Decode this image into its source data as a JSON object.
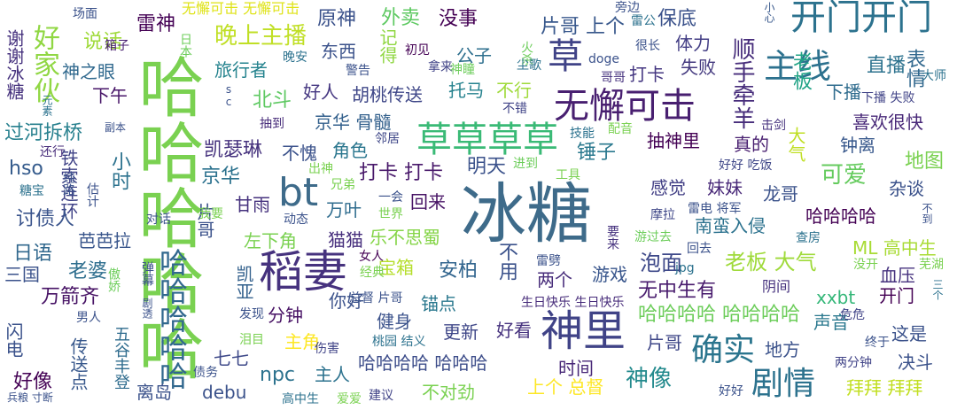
{
  "words": [
    {
      "text": "冰糖",
      "color": "#3e6b8a"
    },
    {
      "text": "哈哈哈哈哈",
      "color": "#7ad151"
    },
    {
      "text": "稻妻",
      "color": "#46327e"
    },
    {
      "text": "神里",
      "color": "#404387"
    },
    {
      "text": "bt",
      "color": "#3e6b8a"
    },
    {
      "text": "草草草草",
      "color": "#3aba76"
    },
    {
      "text": "开门开门",
      "color": "#2c728e"
    },
    {
      "text": "无懈可击",
      "color": "#481f70"
    },
    {
      "text": "草",
      "color": "#404387"
    },
    {
      "text": "主线",
      "color": "#2c718e"
    },
    {
      "text": "剧情",
      "color": "#2c728e"
    },
    {
      "text": "确实",
      "color": "#2b758e"
    },
    {
      "text": "好家伙",
      "color": "#90d743"
    },
    {
      "text": "哈哈哈哈哈",
      "color": "#31688e"
    },
    {
      "text": "晚上主播",
      "color": "#c0df25"
    },
    {
      "text": "雷神",
      "color": "#440154"
    },
    {
      "text": "原神",
      "color": "#3b528b"
    },
    {
      "text": "没事",
      "color": "#440154"
    },
    {
      "text": "片哥 上个",
      "color": "#38588c"
    },
    {
      "text": "保底",
      "color": "#3b528b"
    },
    {
      "text": "外卖",
      "color": "#5ec962"
    },
    {
      "text": "说话",
      "color": "#9fda3a"
    },
    {
      "text": "神之眼",
      "color": "#30698e"
    },
    {
      "text": "旅行者",
      "color": "#25838e"
    },
    {
      "text": "谢谢冰糖",
      "color": "#46327e"
    },
    {
      "text": "下午",
      "color": "#481668"
    },
    {
      "text": "东西",
      "color": "#3b528b"
    },
    {
      "text": "公子",
      "color": "#2e6f8e"
    },
    {
      "text": "体力",
      "color": "#433e85"
    },
    {
      "text": "打卡",
      "color": "#453781"
    },
    {
      "text": "失败",
      "color": "#44397f"
    },
    {
      "text": "顺手牵羊",
      "color": "#472d7b"
    },
    {
      "text": "表情",
      "color": "#31688e"
    },
    {
      "text": "直播",
      "color": "#2c728e"
    },
    {
      "text": "下播",
      "color": "#2f6c8e"
    },
    {
      "text": "老板",
      "color": "#20a386"
    },
    {
      "text": "胡桃传送",
      "color": "#3f4788"
    },
    {
      "text": "托马",
      "color": "#26828e"
    },
    {
      "text": "不行",
      "color": "#9fda3a"
    },
    {
      "text": "记得",
      "color": "#90d743"
    },
    {
      "text": "北斗",
      "color": "#5ec962"
    },
    {
      "text": "好人",
      "color": "#453781"
    },
    {
      "text": "过河拆桥",
      "color": "#27808e"
    },
    {
      "text": "京华 骨髓",
      "color": "#34618d"
    },
    {
      "text": "角色",
      "color": "#2a768e"
    },
    {
      "text": "不愧",
      "color": "#3b528b"
    },
    {
      "text": "抽神里",
      "color": "#440154"
    },
    {
      "text": "真的",
      "color": "#481f70"
    },
    {
      "text": "钟离",
      "color": "#38588c"
    },
    {
      "text": "喜欢很快",
      "color": "#482878"
    },
    {
      "text": "hso",
      "color": "#365c8d"
    },
    {
      "text": "小时",
      "color": "#2c728e"
    },
    {
      "text": "凯瑟琳",
      "color": "#46327e"
    },
    {
      "text": "打卡 打卡",
      "color": "#48186a"
    },
    {
      "text": "明天",
      "color": "#3b528b"
    },
    {
      "text": "锤子",
      "color": "#2a788e"
    },
    {
      "text": "大气",
      "color": "#c0df25"
    },
    {
      "text": "地图",
      "color": "#7ad151"
    },
    {
      "text": "铁索连环",
      "color": "#404387"
    },
    {
      "text": "京华",
      "color": "#2c728e"
    },
    {
      "text": "回来",
      "color": "#471365"
    },
    {
      "text": "感觉",
      "color": "#423f85"
    },
    {
      "text": "妹妹",
      "color": "#482878"
    },
    {
      "text": "可爱",
      "color": "#65cb5e"
    },
    {
      "text": "龙哥",
      "color": "#3b528b"
    },
    {
      "text": "杂谈",
      "color": "#3b528b"
    },
    {
      "text": "讨债人",
      "color": "#3a548c"
    },
    {
      "text": "甘雨",
      "color": "#46327e"
    },
    {
      "text": "万叶",
      "color": "#2f6c8e"
    },
    {
      "text": "哈哈哈哈",
      "color": "#440154"
    },
    {
      "text": "芭芭拉",
      "color": "#39568c"
    },
    {
      "text": "片哥",
      "color": "#3b528b"
    },
    {
      "text": "左下角",
      "color": "#7ad151"
    },
    {
      "text": "猫猫",
      "color": "#472f7d"
    },
    {
      "text": "乐不思蜀",
      "color": "#86d549"
    },
    {
      "text": "南蛮入侵",
      "color": "#2c728e"
    },
    {
      "text": "泡面",
      "color": "#3e4989"
    },
    {
      "text": "日语",
      "color": "#31688e"
    },
    {
      "text": "老婆",
      "color": "#2e6e8e"
    },
    {
      "text": "老板 大气",
      "color": "#9fda3a"
    },
    {
      "text": "ML 高中生",
      "color": "#a8db34"
    },
    {
      "text": "血压",
      "color": "#46327e"
    },
    {
      "text": "三国",
      "color": "#3b528b"
    },
    {
      "text": "宝箱",
      "color": "#b5de2b"
    },
    {
      "text": "安柏",
      "color": "#32658e"
    },
    {
      "text": "不用",
      "color": "#3b528b"
    },
    {
      "text": "游戏",
      "color": "#39568c"
    },
    {
      "text": "两个",
      "color": "#472c7a"
    },
    {
      "text": "万箭齐",
      "color": "#471365"
    },
    {
      "text": "凯亚",
      "color": "#34618d"
    },
    {
      "text": "xxbt",
      "color": "#35b779"
    },
    {
      "text": "开门",
      "color": "#440154"
    },
    {
      "text": "无中生有",
      "color": "#481b6d"
    },
    {
      "text": "锚点",
      "color": "#2a788e"
    },
    {
      "text": "阴间",
      "color": "#46327e"
    },
    {
      "text": "分钟",
      "color": "#471164"
    },
    {
      "text": "你好",
      "color": "#3b528b"
    },
    {
      "text": "健身",
      "color": "#3b528b"
    },
    {
      "text": "哈哈哈哈 哈哈哈哈",
      "color": "#6ccd5a"
    },
    {
      "text": "主角",
      "color": "#fde725"
    },
    {
      "text": "更新",
      "color": "#3f4788"
    },
    {
      "text": "好看",
      "color": "#46327e"
    },
    {
      "text": "片哥",
      "color": "#3f4788"
    },
    {
      "text": "地方",
      "color": "#3b528b"
    },
    {
      "text": "声音",
      "color": "#2a788e"
    },
    {
      "text": "这是",
      "color": "#3b528b"
    },
    {
      "text": "闪电",
      "color": "#3b528b"
    },
    {
      "text": "七七",
      "color": "#3e4989"
    },
    {
      "text": "哈哈哈哈 哈哈哈",
      "color": "#3d4d8a"
    },
    {
      "text": "时间",
      "color": "#482878"
    },
    {
      "text": "决斗",
      "color": "#3b528b"
    },
    {
      "text": "好像",
      "color": "#440154"
    },
    {
      "text": "npc",
      "color": "#2c728e"
    },
    {
      "text": "主人",
      "color": "#2c728e"
    },
    {
      "text": "神像",
      "color": "#238a8d"
    },
    {
      "text": "上个 总督",
      "color": "#fde725"
    },
    {
      "text": "传送点",
      "color": "#38588c"
    },
    {
      "text": "五谷丰登",
      "color": "#2f6c8e"
    },
    {
      "text": "离岛",
      "color": "#3b528b"
    },
    {
      "text": "debu",
      "color": "#3b528b"
    },
    {
      "text": "不对劲",
      "color": "#7ad151"
    },
    {
      "text": "拜拜 拜拜",
      "color": "#c2df23"
    },
    {
      "text": "无懈可击 无懈可击",
      "color": "#dfe318"
    },
    {
      "text": "日本",
      "color": "#6ccd5a"
    },
    {
      "text": "箱子",
      "color": "#481f70"
    },
    {
      "text": "晚安",
      "color": "#2c728e"
    },
    {
      "text": "初见",
      "color": "#440154"
    },
    {
      "text": "警告",
      "color": "#3b528b"
    },
    {
      "text": "拿来",
      "color": "#404387"
    },
    {
      "text": "火杀",
      "color": "#6ccd5a"
    },
    {
      "text": "尘歌",
      "color": "#2c728e"
    },
    {
      "text": "神瞳",
      "color": "#6ccd5a"
    },
    {
      "text": "doge",
      "color": "#3b528b"
    },
    {
      "text": "很长",
      "color": "#3b528b"
    },
    {
      "text": "哥哥",
      "color": "#46327e"
    },
    {
      "text": "雷公",
      "color": "#2c728e"
    },
    {
      "text": "旁边",
      "color": "#3b528b"
    },
    {
      "text": "小心",
      "color": "#38588c"
    },
    {
      "text": "大师",
      "color": "#2c728e"
    },
    {
      "text": "下播 失败",
      "color": "#404387"
    },
    {
      "text": "击剑",
      "color": "#46327e"
    },
    {
      "text": "抽到",
      "color": "#472c7a"
    },
    {
      "text": "不错",
      "color": "#404387"
    },
    {
      "text": "技能",
      "color": "#2c728e"
    },
    {
      "text": "配音",
      "color": "#7ad151"
    },
    {
      "text": "好好 吃饭",
      "color": "#3f4788"
    },
    {
      "text": "进到",
      "color": "#6ccd5a"
    },
    {
      "text": "工具",
      "color": "#7ad151"
    },
    {
      "text": "邻居",
      "color": "#3f4788"
    },
    {
      "text": "出神",
      "color": "#7ad151"
    },
    {
      "text": "兄弟",
      "color": "#7ad151"
    },
    {
      "text": "一会",
      "color": "#3b528b"
    },
    {
      "text": "世界",
      "color": "#7ad151"
    },
    {
      "text": "糖宝",
      "color": "#2c728e"
    },
    {
      "text": "纯路",
      "color": "#3b528b"
    },
    {
      "text": "还行",
      "color": "#472c7a"
    },
    {
      "text": "估计",
      "color": "#3b528b"
    },
    {
      "text": "对话",
      "color": "#3b528b"
    },
    {
      "text": "我要",
      "color": "#7ad151"
    },
    {
      "text": "动态",
      "color": "#3b528b"
    },
    {
      "text": "摩拉",
      "color": "#3f4788"
    },
    {
      "text": "雷电 将军",
      "color": "#3b528b"
    },
    {
      "text": "游过去",
      "color": "#6ccd5a"
    },
    {
      "text": "回去",
      "color": "#3b528b"
    },
    {
      "text": "要来",
      "color": "#46327e"
    },
    {
      "text": "查房",
      "color": "#2c728e"
    },
    {
      "text": "不到",
      "color": "#3b528b"
    },
    {
      "text": "女人",
      "color": "#440154"
    },
    {
      "text": "雷劈",
      "color": "#3b528b"
    },
    {
      "text": "jpg",
      "color": "#2c728e"
    },
    {
      "text": "没开",
      "color": "#7ad151"
    },
    {
      "text": "芜湖",
      "color": "#7ad151"
    },
    {
      "text": "傲娇",
      "color": "#6ccd5a"
    },
    {
      "text": "弹幕",
      "color": "#3b528b"
    },
    {
      "text": "总督 片哥",
      "color": "#3b528b"
    },
    {
      "text": "生日快乐 生日快乐",
      "color": "#472c7a"
    },
    {
      "text": "三个",
      "color": "#2c728e"
    },
    {
      "text": "男人",
      "color": "#3b528b"
    },
    {
      "text": "发现",
      "color": "#3b528b"
    },
    {
      "text": "泪目",
      "color": "#7ad151"
    },
    {
      "text": "桃园 结义",
      "color": "#2c728e"
    },
    {
      "text": "危危",
      "color": "#404387"
    },
    {
      "text": "终于",
      "color": "#3b528b"
    },
    {
      "text": "伤害",
      "color": "#404387"
    },
    {
      "text": "两分钟",
      "color": "#404387"
    },
    {
      "text": "好好",
      "color": "#3b528b"
    },
    {
      "text": "债务",
      "color": "#3b528b"
    },
    {
      "text": "高中生",
      "color": "#2c728e"
    },
    {
      "text": "爱爱",
      "color": "#7ad151"
    },
    {
      "text": "建议",
      "color": "#404387"
    },
    {
      "text": "兵粮 寸断",
      "color": "#3b528b"
    },
    {
      "text": "场面",
      "color": "#3b528b"
    },
    {
      "text": "副本",
      "color": "#3b528b"
    },
    {
      "text": "元素",
      "color": "#2c728e"
    },
    {
      "text": "经典",
      "color": "#7ad151"
    },
    {
      "text": "sc",
      "color": "#3b528b"
    },
    {
      "text": "剧透",
      "color": "#3b528b"
    },
    {
      "text": "幽默",
      "color": "#6ccd5a"
    }
  ]
}
